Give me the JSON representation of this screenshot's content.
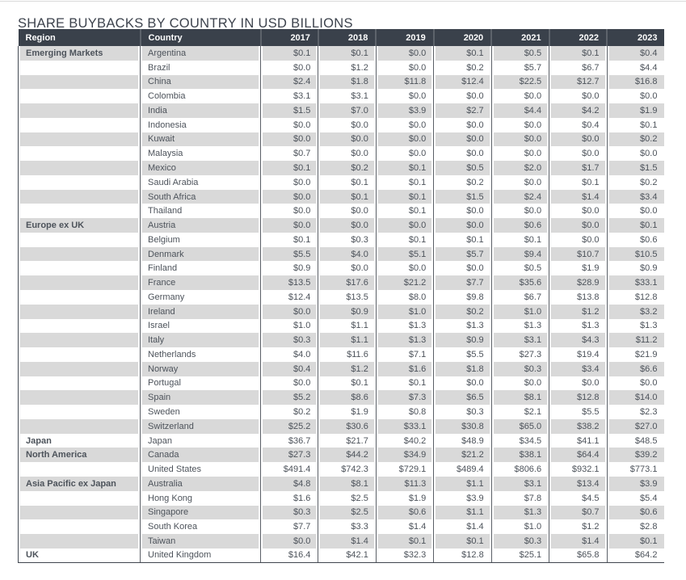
{
  "title": "SHARE BUYBACKS BY COUNTRY IN USD BILLIONS",
  "colors": {
    "header_bg": "#3a414b",
    "header_text": "#ffffff",
    "stripe": "#d9d9d9",
    "row_white": "#ffffff",
    "cell_text": "#4d535b",
    "region_text": "#343b44",
    "grid_line": "#5b6067",
    "outer_border": "#454b54",
    "title_text": "#3d434d",
    "top_rule": "#d9d9d9"
  },
  "chart_data": {
    "type": "table",
    "title": "SHARE BUYBACKS BY COUNTRY IN USD BILLIONS",
    "unit": "USD billions",
    "value_prefix": "$",
    "columns": [
      "Region",
      "Country",
      "2017",
      "2018",
      "2019",
      "2020",
      "2021",
      "2022",
      "2023"
    ],
    "rows": [
      {
        "region": "Emerging Markets",
        "country": "Argentina",
        "values": [
          0.1,
          0.1,
          0.0,
          0.1,
          0.5,
          0.1,
          0.4
        ]
      },
      {
        "region": "",
        "country": "Brazil",
        "values": [
          0.0,
          1.2,
          0.0,
          0.2,
          5.7,
          6.7,
          4.4
        ]
      },
      {
        "region": "",
        "country": "China",
        "values": [
          2.4,
          1.8,
          11.8,
          12.4,
          22.5,
          12.7,
          16.8
        ]
      },
      {
        "region": "",
        "country": "Colombia",
        "values": [
          3.1,
          3.1,
          0.0,
          0.0,
          0.0,
          0.0,
          0.0
        ]
      },
      {
        "region": "",
        "country": "India",
        "values": [
          1.5,
          7.0,
          3.9,
          2.7,
          4.4,
          4.2,
          1.9
        ]
      },
      {
        "region": "",
        "country": "Indonesia",
        "values": [
          0.0,
          0.0,
          0.0,
          0.0,
          0.0,
          0.4,
          0.1
        ]
      },
      {
        "region": "",
        "country": "Kuwait",
        "values": [
          0.0,
          0.0,
          0.0,
          0.0,
          0.0,
          0.0,
          0.2
        ]
      },
      {
        "region": "",
        "country": "Malaysia",
        "values": [
          0.7,
          0.0,
          0.0,
          0.0,
          0.0,
          0.0,
          0.0
        ]
      },
      {
        "region": "",
        "country": "Mexico",
        "values": [
          0.1,
          0.2,
          0.1,
          0.5,
          2.0,
          1.7,
          1.5
        ]
      },
      {
        "region": "",
        "country": "Saudi Arabia",
        "values": [
          0.0,
          0.1,
          0.1,
          0.2,
          0.0,
          0.1,
          0.2
        ]
      },
      {
        "region": "",
        "country": "South Africa",
        "values": [
          0.0,
          0.1,
          0.1,
          1.5,
          2.4,
          1.4,
          3.4
        ]
      },
      {
        "region": "",
        "country": "Thailand",
        "values": [
          0.0,
          0.0,
          0.1,
          0.0,
          0.0,
          0.0,
          0.0
        ]
      },
      {
        "region": "Europe ex UK",
        "country": "Austria",
        "values": [
          0.0,
          0.0,
          0.0,
          0.0,
          0.6,
          0.0,
          0.1
        ]
      },
      {
        "region": "",
        "country": "Belgium",
        "values": [
          0.1,
          0.3,
          0.1,
          0.1,
          0.1,
          0.0,
          0.6
        ]
      },
      {
        "region": "",
        "country": "Denmark",
        "values": [
          5.5,
          4.0,
          5.1,
          5.7,
          9.4,
          10.7,
          10.5
        ]
      },
      {
        "region": "",
        "country": "Finland",
        "values": [
          0.9,
          0.0,
          0.0,
          0.0,
          0.5,
          1.9,
          0.9
        ]
      },
      {
        "region": "",
        "country": "France",
        "values": [
          13.5,
          17.6,
          21.2,
          7.7,
          35.6,
          28.9,
          33.1
        ]
      },
      {
        "region": "",
        "country": "Germany",
        "values": [
          12.4,
          13.5,
          8.0,
          9.8,
          6.7,
          13.8,
          12.8
        ]
      },
      {
        "region": "",
        "country": "Ireland",
        "values": [
          0.0,
          0.9,
          1.0,
          0.2,
          1.0,
          1.2,
          3.2
        ]
      },
      {
        "region": "",
        "country": "Israel",
        "values": [
          1.0,
          1.1,
          1.3,
          1.3,
          1.3,
          1.3,
          1.3
        ]
      },
      {
        "region": "",
        "country": "Italy",
        "values": [
          0.3,
          1.1,
          1.3,
          0.9,
          3.1,
          4.3,
          11.2
        ]
      },
      {
        "region": "",
        "country": "Netherlands",
        "values": [
          4.0,
          11.6,
          7.1,
          5.5,
          27.3,
          19.4,
          21.9
        ]
      },
      {
        "region": "",
        "country": "Norway",
        "values": [
          0.4,
          1.2,
          1.6,
          1.8,
          0.3,
          3.4,
          6.6
        ]
      },
      {
        "region": "",
        "country": "Portugal",
        "values": [
          0.0,
          0.1,
          0.1,
          0.0,
          0.0,
          0.0,
          0.0
        ]
      },
      {
        "region": "",
        "country": "Spain",
        "values": [
          5.2,
          8.6,
          7.3,
          6.5,
          8.1,
          12.8,
          14.0
        ]
      },
      {
        "region": "",
        "country": "Sweden",
        "values": [
          0.2,
          1.9,
          0.8,
          0.3,
          2.1,
          5.5,
          2.3
        ]
      },
      {
        "region": "",
        "country": "Switzerland",
        "values": [
          25.2,
          30.6,
          33.1,
          30.8,
          65.0,
          38.2,
          27.0
        ]
      },
      {
        "region": "Japan",
        "country": "Japan",
        "values": [
          36.7,
          21.7,
          40.2,
          48.9,
          34.5,
          41.1,
          48.5
        ]
      },
      {
        "region": "North America",
        "country": "Canada",
        "values": [
          27.3,
          44.2,
          34.9,
          21.2,
          38.1,
          64.4,
          39.2
        ]
      },
      {
        "region": "",
        "country": "United States",
        "values": [
          491.4,
          742.3,
          729.1,
          489.4,
          806.6,
          932.1,
          773.1
        ]
      },
      {
        "region": "Asia Pacific ex Japan",
        "country": "Australia",
        "values": [
          4.8,
          8.1,
          11.3,
          1.1,
          3.1,
          13.4,
          3.9
        ]
      },
      {
        "region": "",
        "country": "Hong Kong",
        "values": [
          1.6,
          2.5,
          1.9,
          3.9,
          7.8,
          4.5,
          5.4
        ]
      },
      {
        "region": "",
        "country": "Singapore",
        "values": [
          0.3,
          2.5,
          0.6,
          1.1,
          1.3,
          0.7,
          0.6
        ]
      },
      {
        "region": "",
        "country": "South Korea",
        "values": [
          7.7,
          3.3,
          1.4,
          1.4,
          1.0,
          1.2,
          2.8
        ]
      },
      {
        "region": "",
        "country": "Taiwan",
        "values": [
          0.0,
          1.4,
          0.1,
          0.1,
          0.3,
          1.4,
          0.1
        ]
      },
      {
        "region": "UK",
        "country": "United Kingdom",
        "values": [
          16.4,
          42.1,
          32.3,
          12.8,
          25.1,
          65.8,
          64.2
        ]
      }
    ]
  }
}
